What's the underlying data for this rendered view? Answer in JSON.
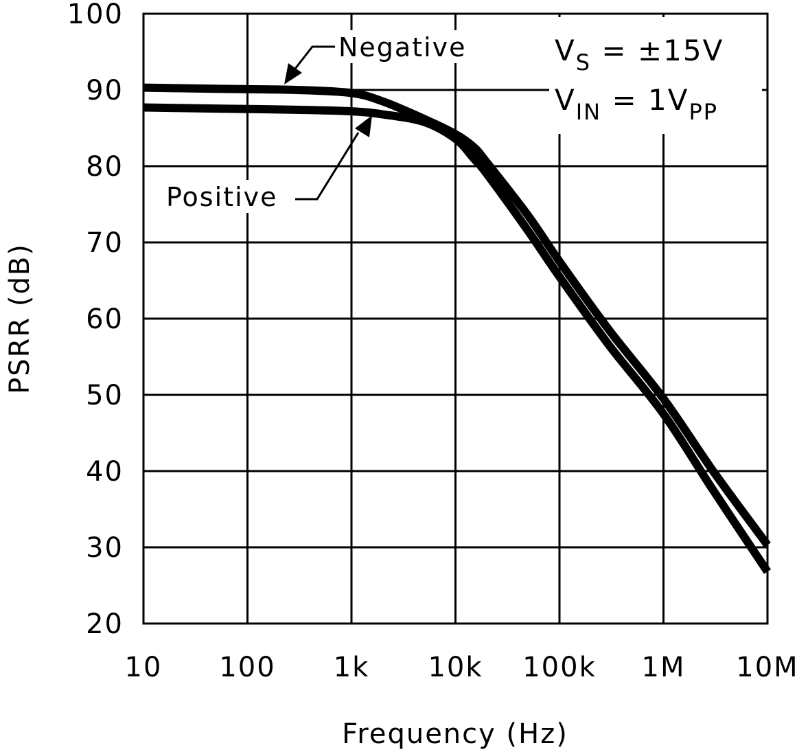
{
  "chart_data": {
    "type": "line",
    "title": "",
    "xlabel": "Frequency (Hz)",
    "ylabel": "PSRR (dB)",
    "xscale": "log",
    "xlim": [
      10,
      10000000
    ],
    "ylim": [
      20,
      100
    ],
    "grid": true,
    "xticks": [
      10,
      100,
      1000,
      10000,
      100000,
      1000000,
      10000000
    ],
    "xtick_labels": [
      "10",
      "100",
      "1k",
      "10k",
      "100k",
      "1M",
      "10M"
    ],
    "yticks": [
      20,
      30,
      40,
      50,
      60,
      70,
      80,
      90,
      100
    ],
    "ytick_labels": [
      "20",
      "30",
      "40",
      "50",
      "60",
      "70",
      "80",
      "90",
      "100"
    ],
    "x": [
      10,
      30,
      100,
      300,
      1000,
      2000,
      5000,
      10000,
      15000,
      20000,
      50000,
      100000,
      300000,
      1000000,
      3000000,
      10000000
    ],
    "series": [
      {
        "name": "Negative",
        "values": [
          90.3,
          90.2,
          90.1,
          90.0,
          89.6,
          88.5,
          86.2,
          84.2,
          82.5,
          80.5,
          73.5,
          67.5,
          58.5,
          49.5,
          40.0,
          30.3
        ]
      },
      {
        "name": "Positive",
        "values": [
          87.7,
          87.6,
          87.5,
          87.4,
          87.2,
          86.8,
          85.8,
          83.6,
          81.0,
          79.0,
          71.5,
          65.5,
          56.5,
          47.5,
          37.5,
          26.8
        ]
      }
    ],
    "annotations": {
      "negative_label": "Negative",
      "positive_label": "Positive",
      "vs_main": "V",
      "vs_sub": "S",
      "vs_rest": " = ±15V",
      "vin_main": "V",
      "vin_sub": "IN",
      "vin_rest": " = 1V",
      "vin_sub2": "PP"
    },
    "line_color": "#000000"
  }
}
